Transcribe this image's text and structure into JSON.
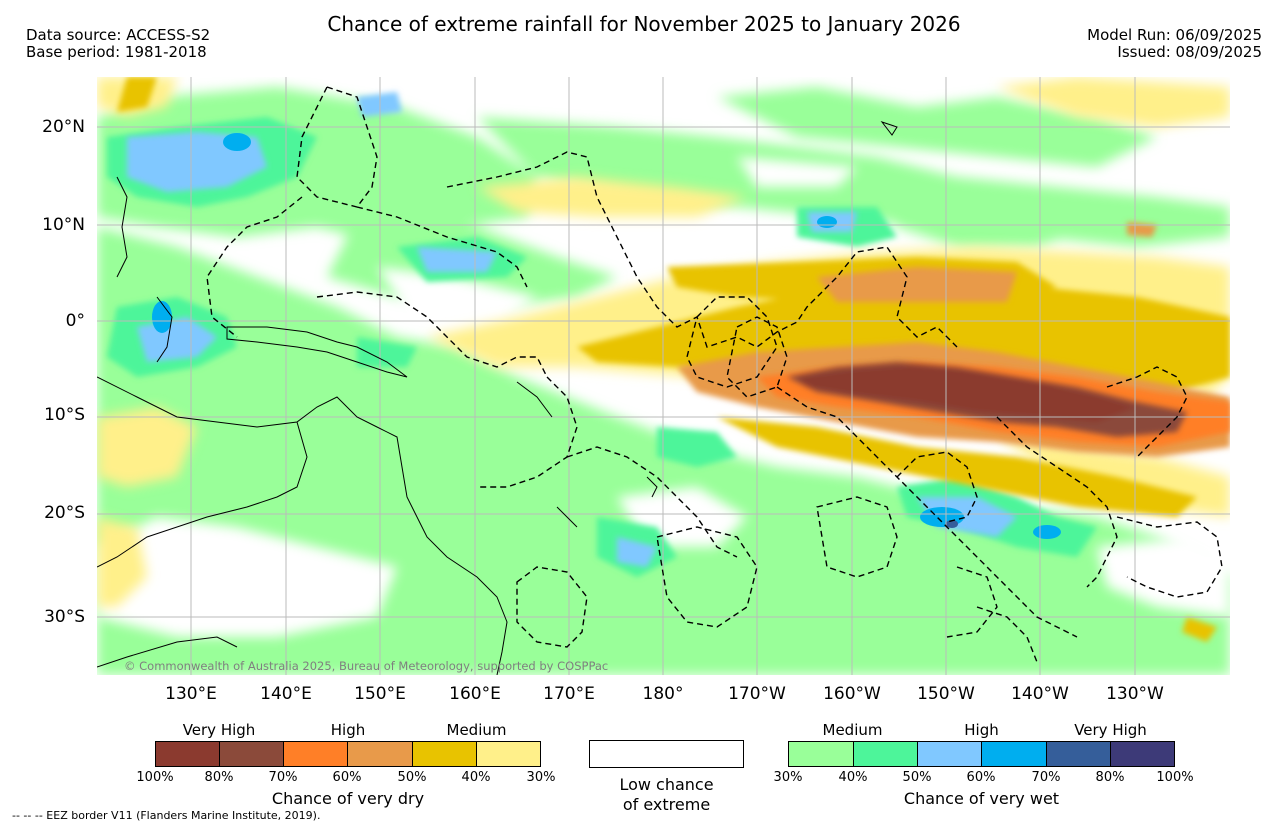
{
  "header": {
    "title": "Chance of extreme rainfall for November 2025 to January 2026",
    "data_source": "Data source: ACCESS-S2",
    "base_period": "Base period: 1981-2018",
    "model_run": "Model Run: 06/09/2025",
    "issued": "Issued: 08/09/2025"
  },
  "map": {
    "lat_labels": [
      "20°N",
      "10°N",
      "0°",
      "10°S",
      "20°S",
      "30°S"
    ],
    "lon_labels": [
      "130°E",
      "140°E",
      "150°E",
      "160°E",
      "170°E",
      "180°",
      "170°W",
      "160°W",
      "150°W",
      "140°W",
      "130°W"
    ],
    "copyright": "© Commonwealth of Australia 2025, Bureau of Meteorology, supported by COSPPac",
    "colors": {
      "dry_very_high_1": "#8B3A2F",
      "dry_very_high_2": "#8B4A3A",
      "dry_high_1": "#FF7F27",
      "dry_high_2": "#E89A4A",
      "dry_medium_1": "#E8C300",
      "dry_medium_2": "#FFF08A",
      "wet_medium_1": "#99FF99",
      "wet_medium_2": "#4DF59A",
      "wet_high_1": "#80C8FF",
      "wet_high_2": "#00AEEF",
      "wet_very_high_1": "#355E9A",
      "wet_very_high_2": "#3D3A78"
    }
  },
  "legend": {
    "dry": {
      "category_labels": [
        "Very High",
        "High",
        "Medium"
      ],
      "ticks": [
        "100%",
        "80%",
        "70%",
        "60%",
        "50%",
        "40%",
        "30%"
      ],
      "label": "Chance of very dry"
    },
    "low": {
      "label_line1": "Low chance",
      "label_line2": "of extreme"
    },
    "wet": {
      "category_labels": [
        "Medium",
        "High",
        "Very High"
      ],
      "ticks": [
        "30%",
        "40%",
        "50%",
        "60%",
        "70%",
        "80%",
        "100%"
      ],
      "label": "Chance of very wet"
    }
  },
  "footer": {
    "eez_note": "--  --  -- EEZ border V11 (Flanders Marine Institute, 2019)."
  }
}
